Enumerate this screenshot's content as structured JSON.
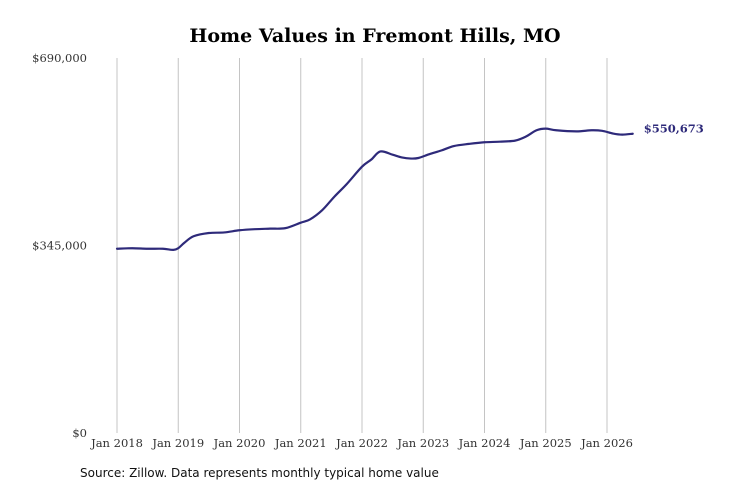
{
  "chart_data": {
    "type": "line",
    "title": "Home Values in Fremont Hills, MO",
    "source": "Source: Zillow. Data represents monthly typical home value",
    "xlabel": "",
    "ylabel": "",
    "ylim": [
      0,
      690000
    ],
    "y_ticks": [
      {
        "value": 0,
        "label": "$0"
      },
      {
        "value": 345000,
        "label": "$345,000"
      },
      {
        "value": 690000,
        "label": "$690,000"
      }
    ],
    "x_ticks": [
      {
        "value": 2018,
        "label": "Jan 2018"
      },
      {
        "value": 2019,
        "label": "Jan 2019"
      },
      {
        "value": 2020,
        "label": "Jan 2020"
      },
      {
        "value": 2021,
        "label": "Jan 2021"
      },
      {
        "value": 2022,
        "label": "Jan 2022"
      },
      {
        "value": 2023,
        "label": "Jan 2023"
      },
      {
        "value": 2024,
        "label": "Jan 2024"
      },
      {
        "value": 2025,
        "label": "Jan 2025"
      },
      {
        "value": 2026,
        "label": "Jan 2026"
      }
    ],
    "xlim": [
      2018,
      2026.45
    ],
    "grid": "vertical",
    "line_color": "#2e2a7a",
    "end_label": "$550,673",
    "series": [
      {
        "x": [
          2018.0,
          2018.25,
          2018.5,
          2018.75,
          2018.92,
          2019.0,
          2019.1,
          2019.25,
          2019.5,
          2019.75,
          2020.0,
          2020.25,
          2020.5,
          2020.75,
          2021.0,
          2021.15,
          2021.35,
          2021.55,
          2021.75,
          2022.0,
          2022.15,
          2022.3,
          2022.5,
          2022.65,
          2022.8,
          2022.92,
          2023.1,
          2023.3,
          2023.5,
          2023.75,
          2024.0,
          2024.25,
          2024.5,
          2024.67,
          2024.85,
          2025.0,
          2025.17,
          2025.5,
          2025.75,
          2025.92,
          2026.1,
          2026.25,
          2026.42
        ],
        "y": [
          339000,
          340000,
          339000,
          339000,
          337000,
          340000,
          350000,
          362000,
          368000,
          369000,
          373000,
          375000,
          376000,
          377000,
          387000,
          393000,
          410000,
          435000,
          458000,
          490000,
          503000,
          518000,
          512000,
          507000,
          505000,
          506000,
          513000,
          520000,
          528000,
          532000,
          535000,
          536000,
          538000,
          545000,
          557000,
          560000,
          557000,
          555000,
          557000,
          556000,
          551000,
          549000,
          550673
        ]
      }
    ]
  }
}
